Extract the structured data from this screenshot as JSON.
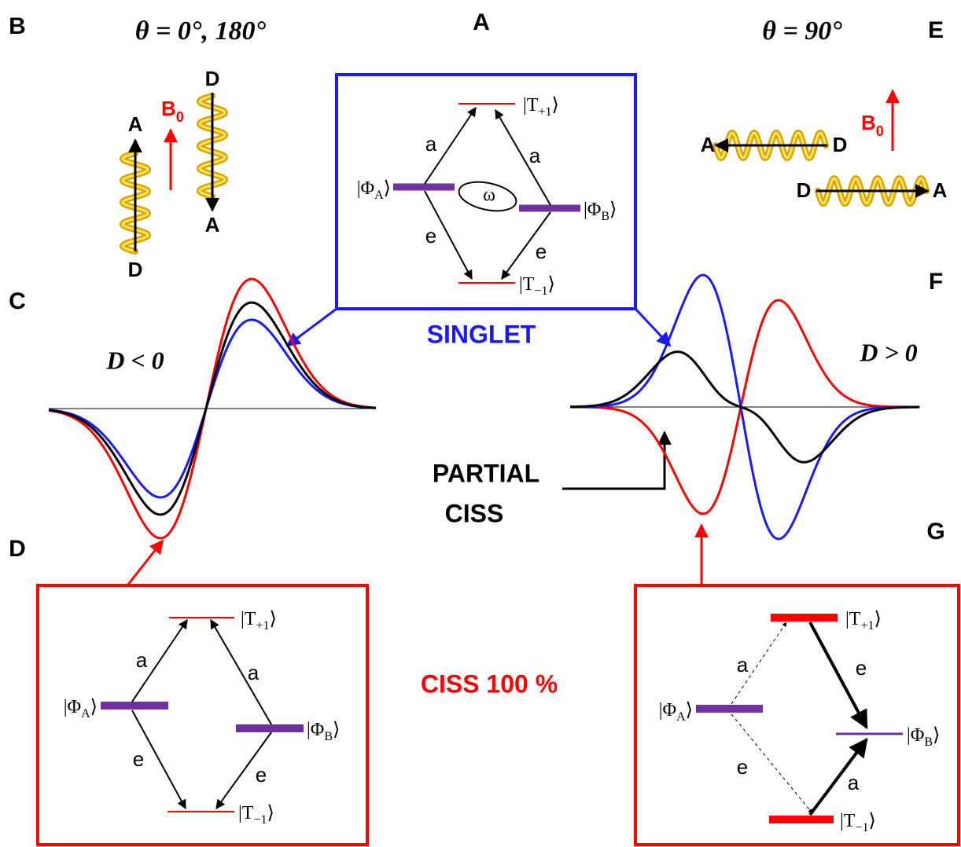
{
  "letters": [
    "A",
    "B",
    "C",
    "D",
    "E",
    "F",
    "G"
  ],
  "panel_b": {
    "title": "θ = 0°, 180°",
    "field": {
      "base": "B",
      "sub": "0"
    },
    "helix_1_ends": [
      "A",
      "D"
    ],
    "helix_2_ends": [
      "D",
      "A"
    ]
  },
  "panel_e": {
    "title": "θ = 90°",
    "field": {
      "base": "B",
      "sub": "0"
    },
    "helix_1_ends": [
      "A",
      "D"
    ],
    "helix_2_ends": [
      "D",
      "A"
    ]
  },
  "panel_a": {
    "caption": "SINGLET",
    "levels": [
      {
        "base": "|T",
        "sub": "+1",
        "end": "⟩"
      },
      {
        "base": "|Φ",
        "sub": "A",
        "end": "⟩"
      },
      {
        "base": "|Φ",
        "sub": "B",
        "end": "⟩"
      },
      {
        "base": "|T",
        "sub": "−1",
        "end": "⟩"
      }
    ],
    "arrow_labels": [
      "a",
      "a",
      "e",
      "e"
    ],
    "precession": "ω"
  },
  "panel_c": {
    "label": "D < 0"
  },
  "panel_f": {
    "label": "D > 0"
  },
  "partial": [
    "PARTIAL",
    "CISS"
  ],
  "panel_d": {
    "caption": "CISS 100 %",
    "levels": [
      {
        "base": "|T",
        "sub": "+1",
        "end": "⟩"
      },
      {
        "base": "|Φ",
        "sub": "A",
        "end": "⟩"
      },
      {
        "base": "|Φ",
        "sub": "B",
        "end": "⟩"
      },
      {
        "base": "|T",
        "sub": "−1",
        "end": "⟩"
      }
    ],
    "arrow_labels": [
      "a",
      "a",
      "e",
      "e"
    ]
  },
  "panel_g": {
    "levels": [
      {
        "base": "|T",
        "sub": "+1",
        "end": "⟩"
      },
      {
        "base": "|Φ",
        "sub": "A",
        "end": "⟩"
      },
      {
        "base": "|Φ",
        "sub": "B",
        "end": "⟩"
      },
      {
        "base": "|T",
        "sub": "−1",
        "end": "⟩"
      }
    ],
    "arrow_labels": [
      "a",
      "e",
      "e",
      "a"
    ]
  }
}
